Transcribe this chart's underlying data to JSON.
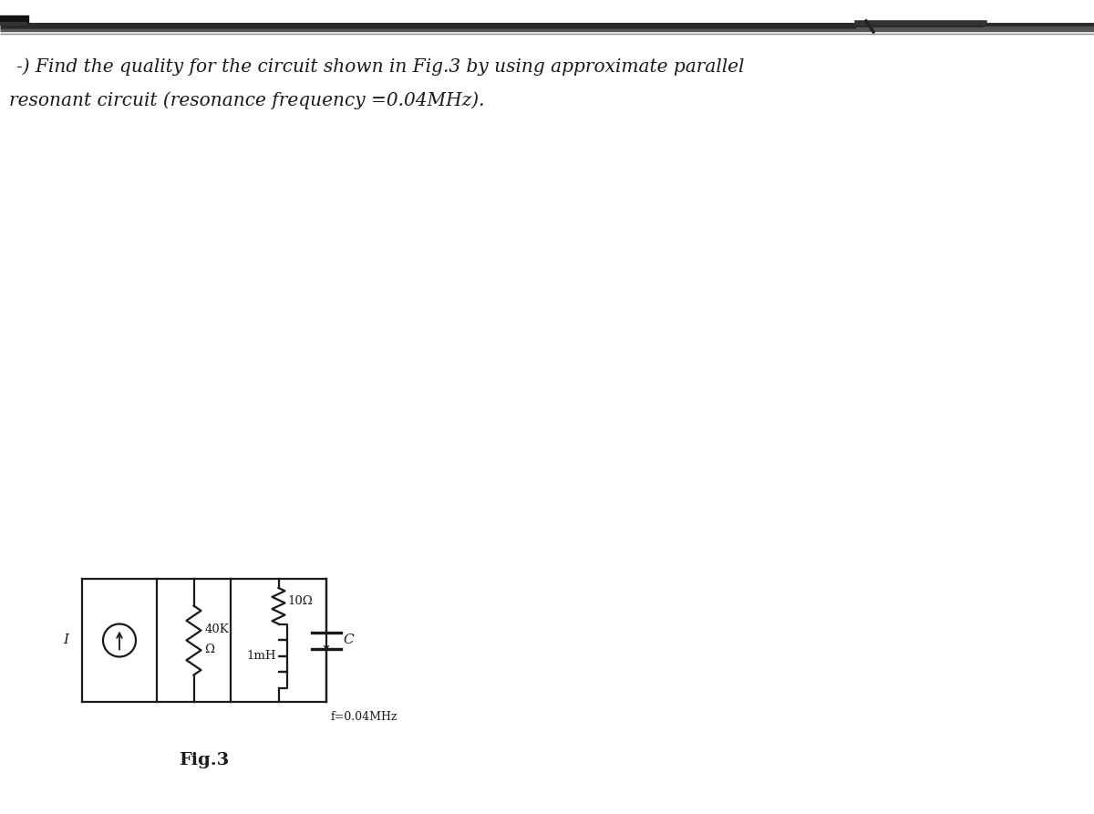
{
  "title_line1": "-) Find the quality for the circuit shown in Fig.3 by using approximate parallel",
  "title_line2": "resonant circuit (resonance frequency =0.04MHz).",
  "fig_label": "Fig.3",
  "bg_color": "#ffffff",
  "text_color": "#1a1a1a",
  "circuit": {
    "current_source_label": "I",
    "resistor1_label_top": "40K",
    "resistor1_label_bot": "Ω",
    "resistor2_label": "10Ω",
    "inductor_label": "1mH",
    "capacitor_label": "C",
    "freq_label": "f=0.04MHz"
  },
  "header_lw_thick": 3.5,
  "header_lw_thin": 1.2,
  "circuit_lw": 1.6,
  "text_fontsize": 14.5,
  "circuit_fontsize": 9.5
}
